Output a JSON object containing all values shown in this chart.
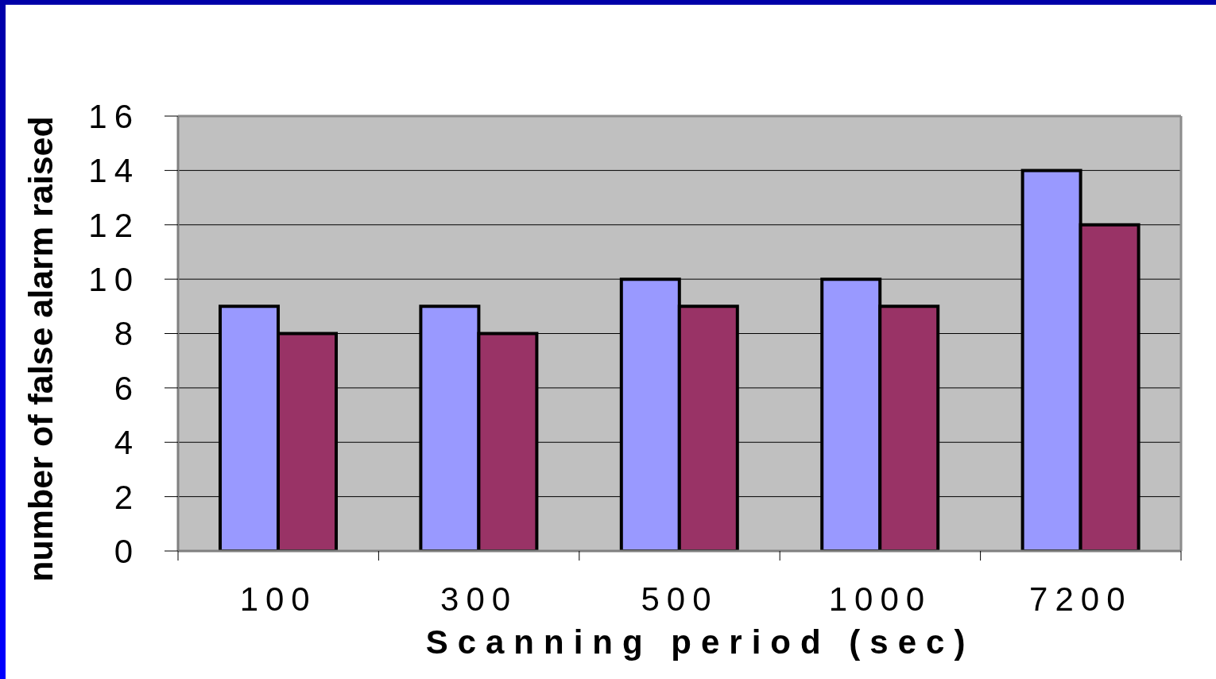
{
  "chart_data": {
    "type": "bar",
    "xlabel": "Scanning period (sec)",
    "ylabel": "number of false alarm raised",
    "categories": [
      "100",
      "300",
      "500",
      "1000",
      "7200"
    ],
    "series": [
      {
        "color": "#9999ff",
        "values": [
          9,
          9,
          10,
          10,
          14
        ]
      },
      {
        "color": "#993366",
        "values": [
          8,
          8,
          9,
          9,
          12
        ]
      }
    ],
    "ylim": [
      0,
      16
    ],
    "yticks": [
      0,
      2,
      4,
      6,
      8,
      10,
      12,
      14,
      16
    ],
    "grid": "y"
  }
}
